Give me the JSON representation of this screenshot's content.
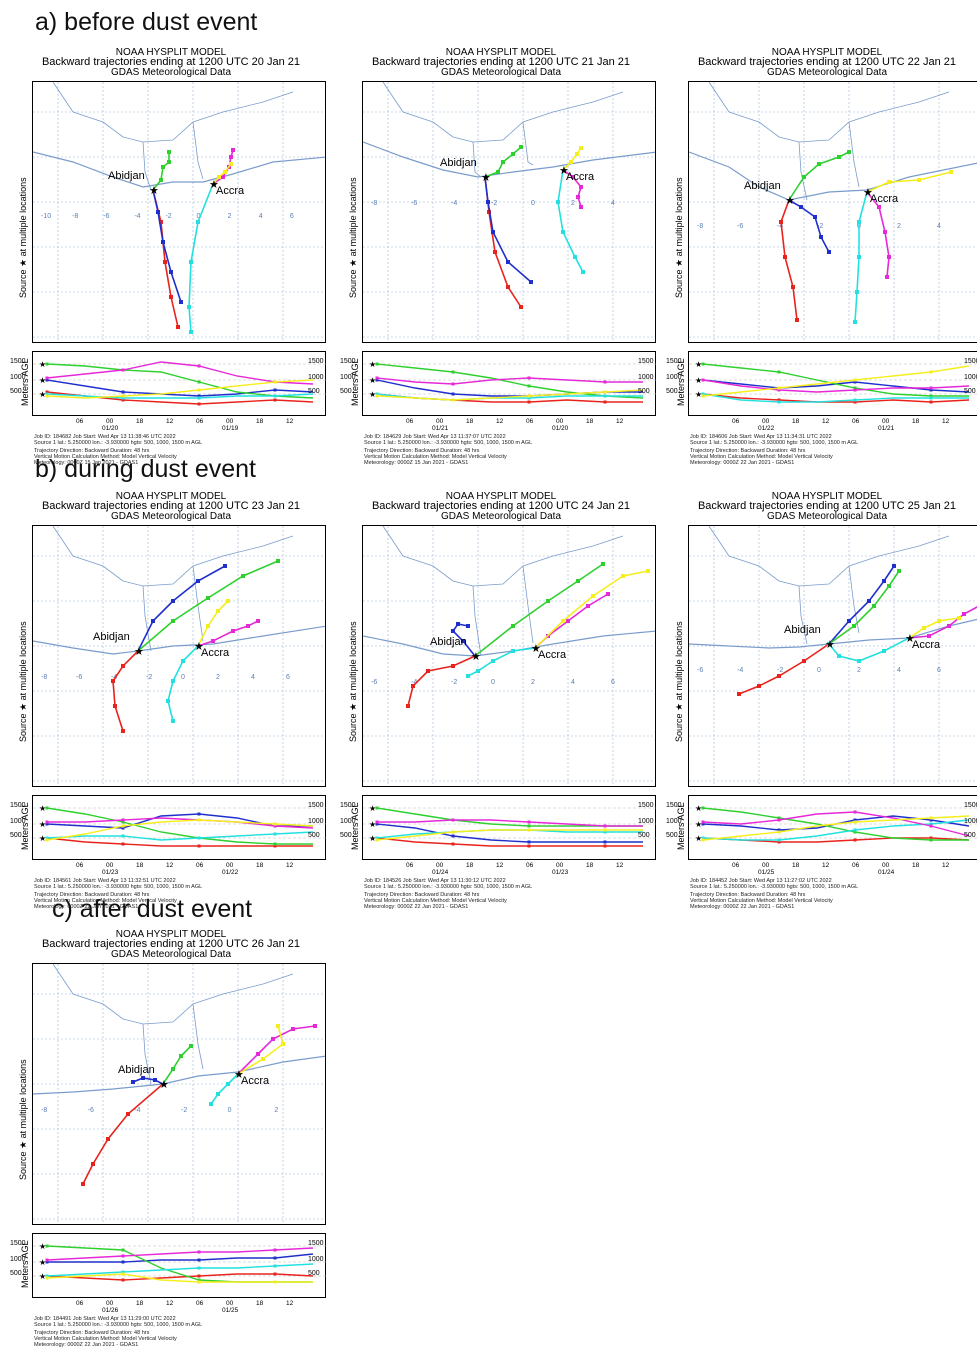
{
  "sections": [
    {
      "label": "a) before dust event"
    },
    {
      "label": "b) during dust event"
    },
    {
      "label": "c) after dust event"
    }
  ],
  "common": {
    "model": "NOAA HYSPLIT MODEL",
    "met": "GDAS Meteorological Data",
    "map_ylabel": "Source ★ at multiple locations",
    "alt_ylabel": "Meters AGL",
    "alt_levels": [
      "1500",
      "1000",
      "500"
    ],
    "abidjan": "Abidjan",
    "accra": "Accra",
    "direction": "Trajectory Direction: Backward     Duration: 48 hrs",
    "vertical": "Vertical Motion Calculation Method:      Model Vertical Velocity",
    "source": "Source 1 lat.: 5.250000  lon.: -3.930000  hgts: 500, 1000, 1500 m AGL"
  },
  "colors": {
    "red": "#e8231c",
    "blue": "#1f2fcc",
    "green": "#2ed02e",
    "magenta": "#e628d8",
    "cyan": "#22e0e0",
    "yellow": "#f5ee1e",
    "grid": "#9ab3d8",
    "coast": "#7a9ccc"
  },
  "panels": [
    {
      "title": "Backward trajectories ending at 1200 UTC 20 Jan 21",
      "job": "Job ID: 184682                  Job Start: Wed Apr 13 11:38:46 UTC 2022",
      "met_line": "Meteorology: 0000Z 15 Jan 2021 - GDAS1",
      "ticks": [
        "06",
        "00",
        "18",
        "12",
        "06",
        "00",
        "18",
        "12"
      ],
      "dates": [
        "01/20",
        "01/19"
      ],
      "lat_labels": [
        "-10",
        "-8",
        "-6",
        "-4",
        "-2",
        "0",
        "2",
        "4",
        "6"
      ]
    },
    {
      "title": "Backward trajectories ending at 1200 UTC 21 Jan 21",
      "job": "Job ID: 184629                  Job Start: Wed Apr 13 11:37:07 UTC 2022",
      "met_line": "Meteorology: 0000Z 15 Jan 2021 - GDAS1",
      "ticks": [
        "06",
        "00",
        "18",
        "12",
        "06",
        "00",
        "18",
        "12"
      ],
      "dates": [
        "01/21",
        "01/20"
      ],
      "lat_labels": [
        "-8",
        "-6",
        "-4",
        "-2",
        "0",
        "2",
        "4"
      ]
    },
    {
      "title": "Backward trajectories ending at 1200 UTC 22 Jan 21",
      "job": "Job ID: 184606                  Job Start: Wed Apr 13 11:34:31 UTC 2022",
      "met_line": "Meteorology: 0000Z 22 Jan 2021 - GDAS1",
      "ticks": [
        "06",
        "00",
        "18",
        "12",
        "06",
        "00",
        "18",
        "12"
      ],
      "dates": [
        "01/22",
        "01/21"
      ],
      "lat_labels": [
        "-8",
        "-6",
        "-4",
        "-2",
        "0",
        "2",
        "4"
      ]
    },
    {
      "title": "Backward trajectories ending at 1200 UTC 23 Jan 21",
      "job": "Job ID: 184561                  Job Start: Wed Apr 13 11:32:51 UTC 2022",
      "met_line": "Meteorology: 0000Z 22 Jan 2021 - GDAS1",
      "ticks": [
        "06",
        "00",
        "18",
        "12",
        "06",
        "00",
        "18",
        "12"
      ],
      "dates": [
        "01/23",
        "01/22"
      ],
      "lat_labels": [
        "-8",
        "-6",
        "-4",
        "-2",
        "0",
        "2",
        "4",
        "6"
      ]
    },
    {
      "title": "Backward trajectories ending at 1200 UTC 24 Jan 21",
      "job": "Job ID: 184526                  Job Start: Wed Apr 13 11:30:12 UTC 2022",
      "met_line": "Meteorology: 0000Z 22 Jan 2021 - GDAS1",
      "ticks": [
        "06",
        "00",
        "18",
        "12",
        "06",
        "00",
        "18",
        "12"
      ],
      "dates": [
        "01/24",
        "01/23"
      ],
      "lat_labels": [
        "-6",
        "-4",
        "-2",
        "0",
        "2",
        "4",
        "6"
      ]
    },
    {
      "title": "Backward trajectories ending at 1200 UTC 25 Jan 21",
      "job": "Job ID: 184452                  Job Start: Wed Apr 13 11:27:02 UTC 2022",
      "met_line": "Meteorology: 0000Z 22 Jan 2021 - GDAS1",
      "ticks": [
        "06",
        "00",
        "18",
        "12",
        "06",
        "00",
        "18",
        "12"
      ],
      "dates": [
        "01/25",
        "01/24"
      ],
      "lat_labels": [
        "-6",
        "-4",
        "-2",
        "0",
        "2",
        "4",
        "6"
      ]
    },
    {
      "title": "Backward trajectories ending at 1200 UTC 26 Jan 21",
      "job": "Job ID: 184491                  Job Start: Wed Apr 13 11:29:00 UTC 2022",
      "met_line": "Meteorology: 0000Z 22 Jan 2021 - GDAS1",
      "ticks": [
        "06",
        "00",
        "18",
        "12",
        "06",
        "00",
        "18",
        "12"
      ],
      "dates": [
        "01/26",
        "01/25"
      ],
      "lat_labels": [
        "-8",
        "-6",
        "-4",
        "-2",
        "0",
        "2"
      ]
    }
  ]
}
